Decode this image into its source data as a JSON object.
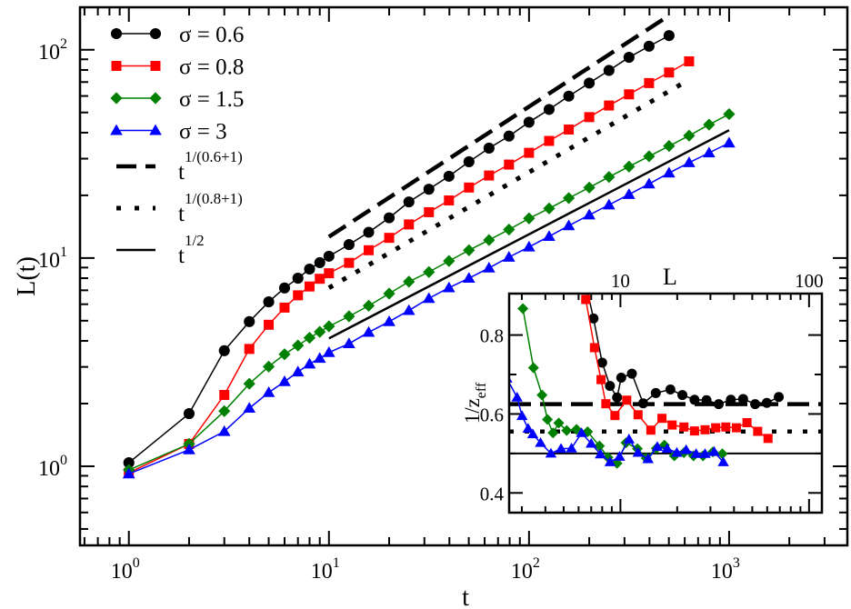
{
  "chart_data": [
    {
      "type": "line",
      "id": "main",
      "xscale": "log",
      "yscale": "log",
      "xlabel": "t",
      "ylabel": "L(t)",
      "xlim": [
        0.57,
        3900
      ],
      "ylim": [
        0.417,
        160
      ],
      "xticks": [
        {
          "v": 1,
          "base": "10",
          "exp": "0"
        },
        {
          "v": 10,
          "base": "10",
          "exp": "1"
        },
        {
          "v": 100,
          "base": "10",
          "exp": "2"
        },
        {
          "v": 1000,
          "base": "10",
          "exp": "3"
        }
      ],
      "yticks": [
        {
          "v": 1,
          "base": "10",
          "exp": "0"
        },
        {
          "v": 10,
          "base": "10",
          "exp": "1"
        },
        {
          "v": 100,
          "base": "10",
          "exp": "2"
        }
      ],
      "legend_position": "top-left",
      "series": [
        {
          "name": "σ = 0.6",
          "color": "#000000",
          "marker": "circle",
          "x": [
            1,
            2,
            3,
            4,
            5,
            6,
            7,
            8,
            9,
            10,
            12.6,
            15.8,
            20,
            25.1,
            31.6,
            39.8,
            50.1,
            63.1,
            79.4,
            100,
            126,
            158,
            200,
            251,
            316,
            398,
            501
          ],
          "y": [
            1.04,
            1.79,
            3.59,
            4.95,
            6.16,
            7.18,
            8.0,
            8.85,
            9.5,
            10.2,
            11.6,
            13.3,
            15.6,
            18.6,
            21.4,
            24.7,
            29.0,
            33.7,
            38.5,
            44.9,
            51.7,
            59.9,
            69.2,
            79.6,
            92,
            104,
            117
          ]
        },
        {
          "name": "σ = 0.8",
          "color": "#ff0000",
          "marker": "square",
          "x": [
            1,
            2,
            3,
            4,
            5,
            6,
            7,
            8,
            9,
            10,
            12.6,
            15.8,
            20,
            25.1,
            31.6,
            39.8,
            50.1,
            63.1,
            79.4,
            100,
            126,
            158,
            200,
            251,
            316,
            398,
            501,
            631
          ],
          "y": [
            0.93,
            1.28,
            2.2,
            3.66,
            4.78,
            5.78,
            6.62,
            7.3,
            7.95,
            8.45,
            9.48,
            10.9,
            12.5,
            14.5,
            16.6,
            18.9,
            21.8,
            24.9,
            28.1,
            32.0,
            36.5,
            41.4,
            47.5,
            54.0,
            61.1,
            69.2,
            77.8,
            88
          ]
        },
        {
          "name": "σ = 1.5",
          "color": "#008000",
          "marker": "diamond",
          "x": [
            1,
            2,
            3,
            4,
            5,
            6,
            7,
            8,
            9,
            10,
            12.6,
            15.8,
            20,
            25.1,
            31.6,
            39.8,
            50.1,
            63.1,
            79.4,
            100,
            126,
            158,
            200,
            251,
            316,
            398,
            501,
            631,
            794,
            1000
          ],
          "y": [
            0.96,
            1.28,
            1.84,
            2.49,
            3.01,
            3.45,
            3.8,
            4.14,
            4.42,
            4.7,
            5.25,
            5.9,
            6.75,
            7.7,
            8.57,
            9.68,
            10.9,
            12.2,
            13.7,
            15.5,
            17.3,
            19.4,
            21.8,
            24.5,
            27.5,
            30.8,
            34.5,
            38.7,
            43.7,
            49.1
          ]
        },
        {
          "name": "σ = 3",
          "color": "#0000ff",
          "marker": "triangle",
          "x": [
            1,
            2,
            3,
            4,
            5,
            6,
            7,
            8,
            9,
            10,
            12.6,
            15.8,
            20,
            25.1,
            31.6,
            39.8,
            50.1,
            63.1,
            79.4,
            100,
            126,
            158,
            200,
            251,
            316,
            398,
            501,
            631,
            794,
            1000
          ],
          "y": [
            0.92,
            1.2,
            1.47,
            1.9,
            2.26,
            2.55,
            2.84,
            3.1,
            3.3,
            3.52,
            3.88,
            4.4,
            4.95,
            5.6,
            6.4,
            7.2,
            8.0,
            8.96,
            10.1,
            11.3,
            12.7,
            14.3,
            16.1,
            18.0,
            20.2,
            22.7,
            25.6,
            28.7,
            32.0,
            35.7
          ]
        }
      ],
      "reference_lines": [
        {
          "name_base": "t",
          "name_exp": "1/(0.6+1)",
          "style": "dashed",
          "prefactor": 3.0,
          "exponent": 0.625,
          "t_range": [
            10,
            500
          ]
        },
        {
          "name_base": "t",
          "name_exp": "1/(0.8+1)",
          "style": "dotted",
          "prefactor": 2.0,
          "exponent": 0.5556,
          "t_range": [
            10,
            600
          ]
        },
        {
          "name_base": "t",
          "name_exp": "1/2",
          "style": "solid",
          "prefactor": 1.3,
          "exponent": 0.5,
          "t_range": [
            10,
            1000
          ]
        }
      ]
    },
    {
      "type": "line",
      "id": "inset",
      "xscale": "log",
      "yscale": "linear",
      "xlabel": "L",
      "ylabel_base": "1/z",
      "ylabel_sub": "eff",
      "xlim": [
        2.57,
        117
      ],
      "ylim": [
        0.35,
        0.905
      ],
      "xticks": [
        {
          "v": 10,
          "label": "10"
        },
        {
          "v": 100,
          "label": "100"
        }
      ],
      "yticks": [
        {
          "v": 0.4,
          "label": "0.4"
        },
        {
          "v": 0.6,
          "label": "0.6"
        },
        {
          "v": 0.8,
          "label": "0.8"
        }
      ],
      "series": [
        {
          "name": "σ = 0.6",
          "color": "#000000",
          "marker": "circle",
          "x": [
            6.4,
            7.2,
            8.0,
            8.8,
            9.6,
            10.1,
            11.5,
            13.2,
            15.4,
            18.4,
            21.3,
            24.7,
            28.6,
            33.2,
            38.5,
            44.7,
            51.8,
            59.7,
            69.1
          ],
          "y": [
            0.95,
            0.842,
            0.73,
            0.671,
            0.642,
            0.692,
            0.702,
            0.627,
            0.653,
            0.662,
            0.648,
            0.636,
            0.635,
            0.625,
            0.636,
            0.638,
            0.625,
            0.628,
            0.643
          ]
        },
        {
          "name": "σ = 0.8",
          "color": "#ff0000",
          "marker": "square",
          "x": [
            6.55,
            7.28,
            7.89,
            8.37,
            9.35,
            10.8,
            12.4,
            14.5,
            16.6,
            18.8,
            21.7,
            24.7,
            28.1,
            32.0,
            36.2,
            41.2,
            46.9,
            53.4,
            60.6
          ],
          "y": [
            0.89,
            0.768,
            0.687,
            0.626,
            0.596,
            0.635,
            0.598,
            0.559,
            0.589,
            0.572,
            0.567,
            0.557,
            0.56,
            0.565,
            0.567,
            0.565,
            0.578,
            0.556,
            0.538
          ]
        },
        {
          "name": "σ = 1.5",
          "color": "#008000",
          "marker": "diamond",
          "x": [
            3.04,
            3.46,
            3.84,
            4.1,
            4.39,
            4.71,
            5.19,
            5.85,
            6.7,
            7.74,
            8.59,
            9.6,
            10.7,
            12.3,
            13.7,
            15.5,
            17.1,
            19.3,
            21.7,
            24.4,
            27.4,
            30.9,
            34.7
          ],
          "y": [
            0.867,
            0.717,
            0.648,
            0.586,
            0.552,
            0.577,
            0.558,
            0.561,
            0.555,
            0.519,
            0.49,
            0.475,
            0.527,
            0.512,
            0.488,
            0.513,
            0.521,
            0.494,
            0.502,
            0.494,
            0.494,
            0.504,
            0.499
          ]
        },
        {
          "name": "σ = 3",
          "color": "#0000ff",
          "marker": "triangle",
          "x": [
            2.5,
            2.83,
            3.01,
            3.24,
            3.43,
            3.77,
            4.28,
            4.84,
            5.5,
            6.22,
            7.0,
            7.83,
            8.81,
            9.89,
            11.1,
            12.4,
            14.0,
            15.7,
            17.7,
            19.9,
            22.3,
            25.2,
            28.1,
            31.4,
            35.1
          ],
          "y": [
            0.69,
            0.642,
            0.595,
            0.563,
            0.549,
            0.527,
            0.5,
            0.512,
            0.513,
            0.552,
            0.525,
            0.498,
            0.478,
            0.492,
            0.536,
            0.502,
            0.486,
            0.517,
            0.512,
            0.502,
            0.509,
            0.499,
            0.499,
            0.504,
            0.478
          ]
        }
      ],
      "reference_lines": [
        {
          "style": "dashed",
          "value": 0.625
        },
        {
          "style": "dotted",
          "value": 0.5556
        },
        {
          "style": "solid",
          "value": 0.5
        }
      ]
    }
  ]
}
